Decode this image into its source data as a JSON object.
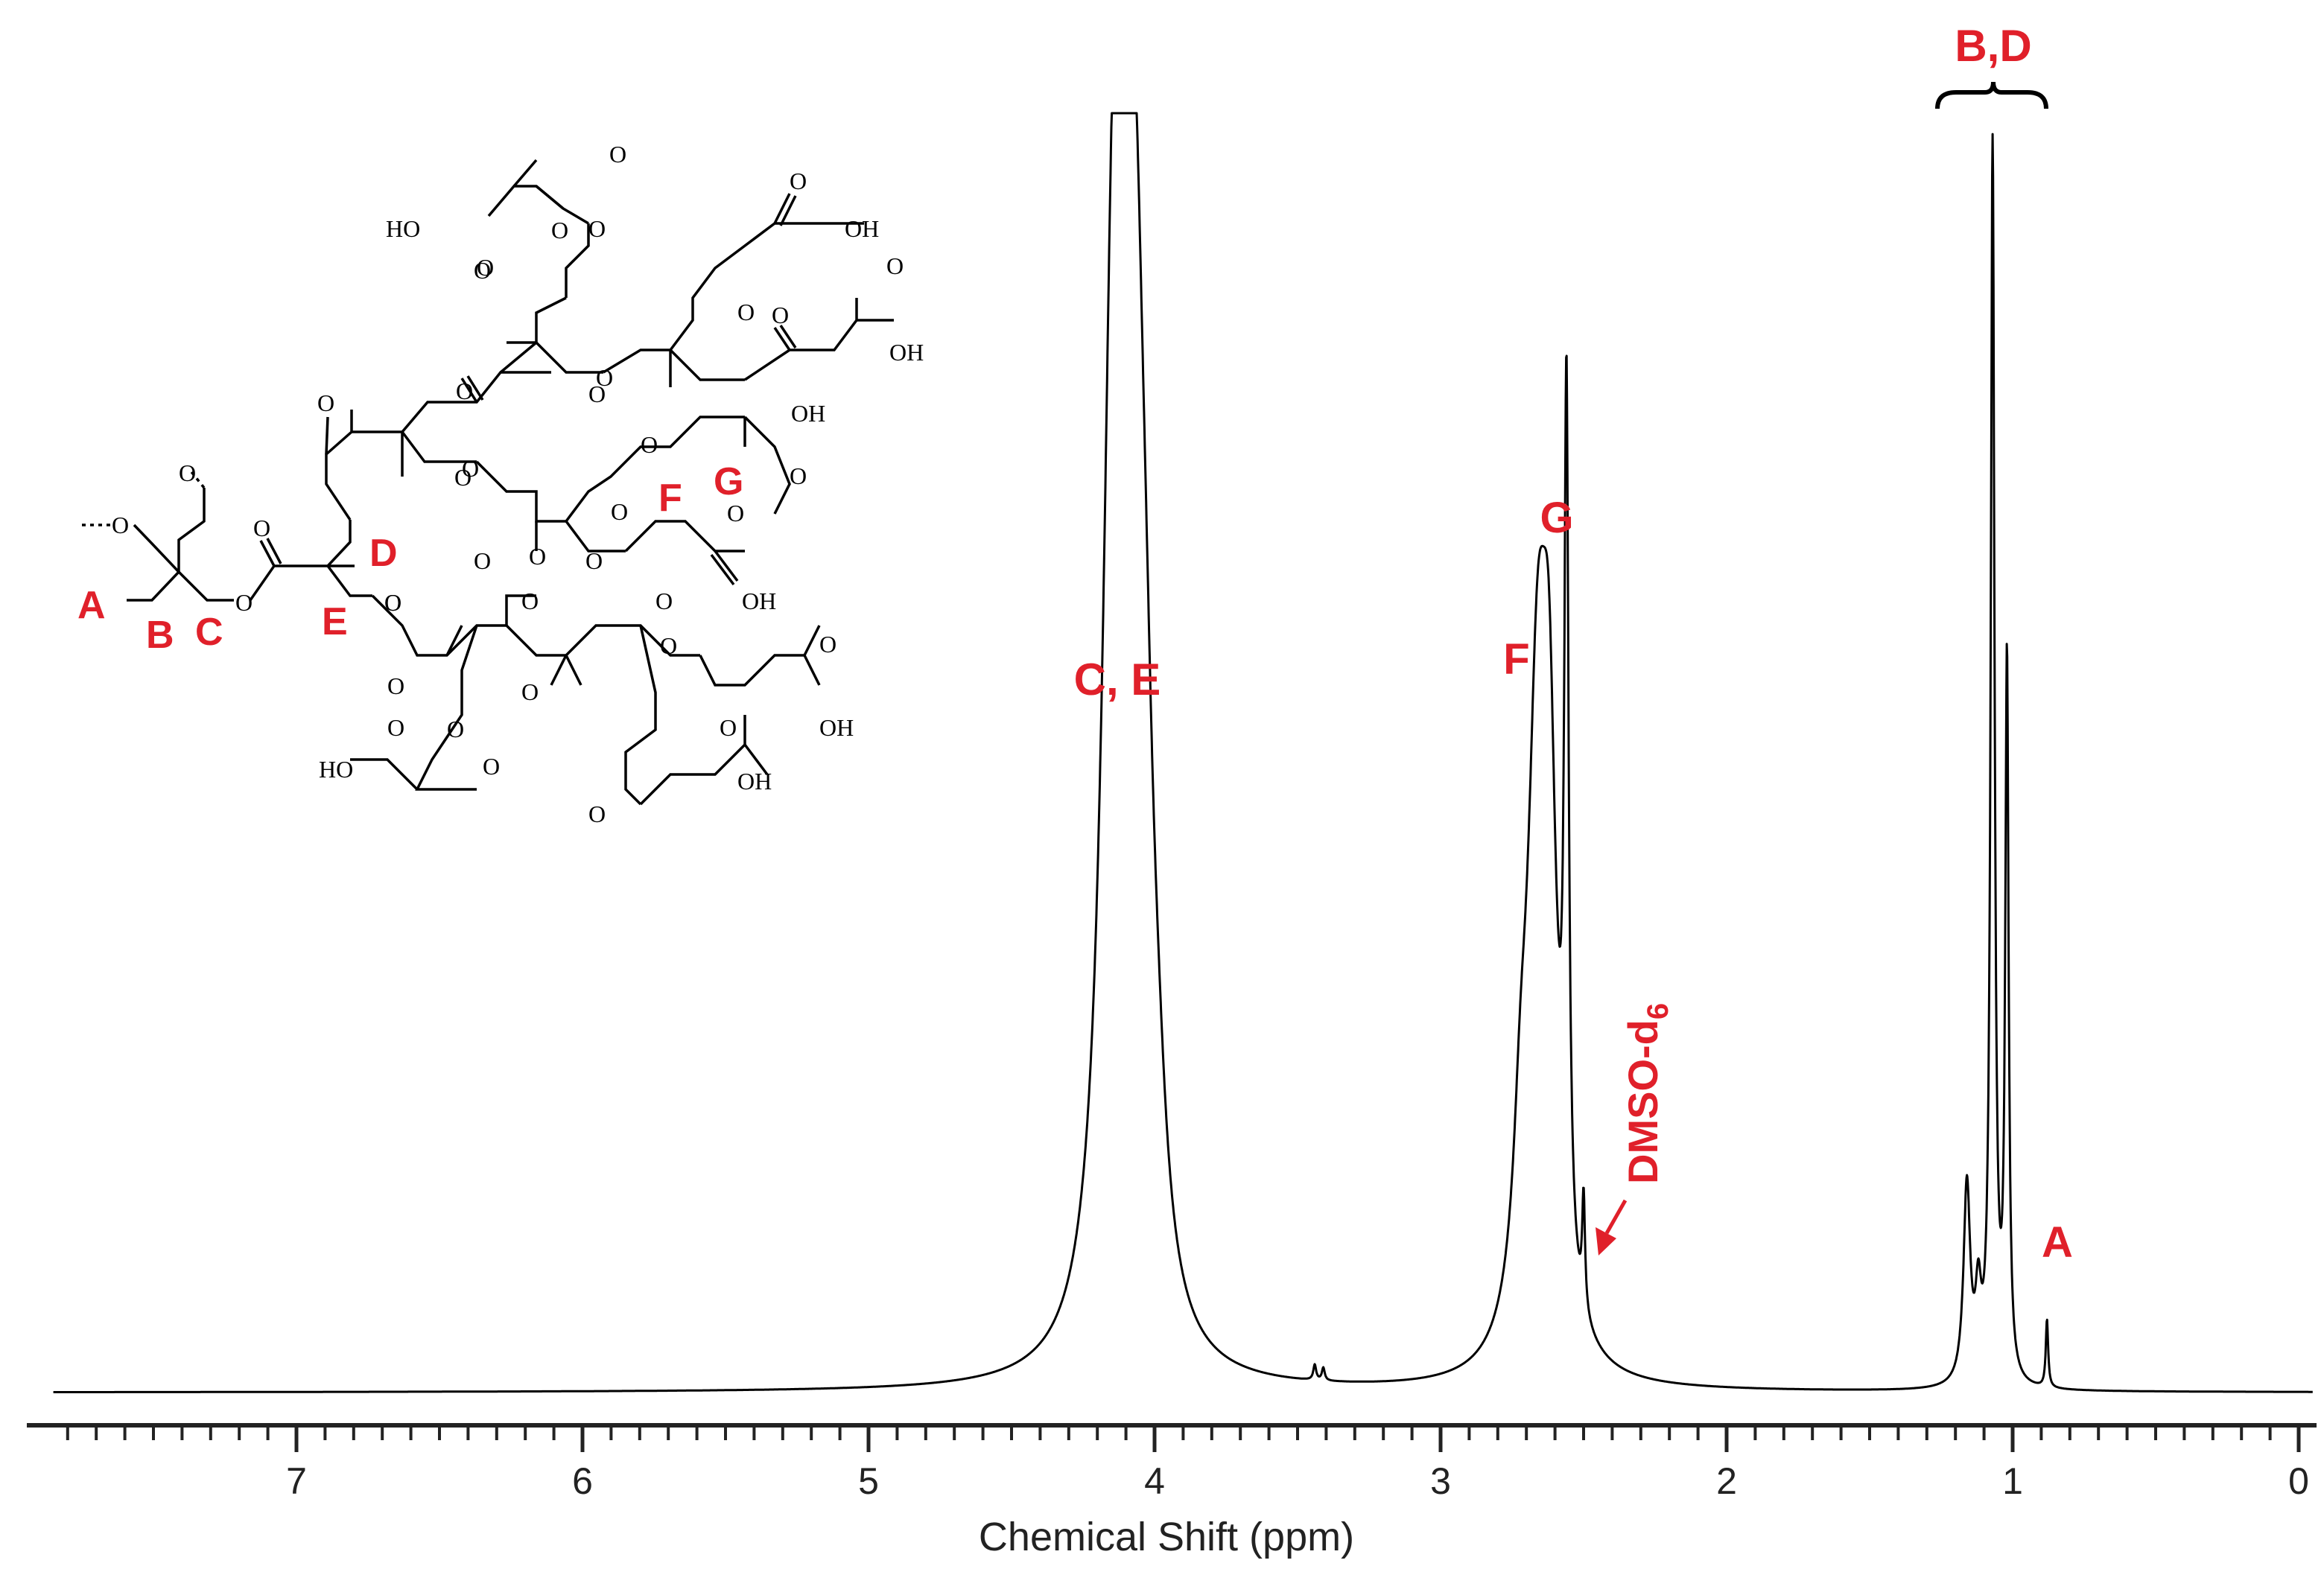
{
  "chart_data": {
    "type": "line",
    "xlabel": "Chemical Shift (ppm)",
    "xlim": [
      7.85,
      -0.05
    ],
    "x_reversed": true,
    "ticks": [
      "7",
      "6",
      "5",
      "4",
      "3",
      "2",
      "1",
      "0"
    ],
    "ylim": [
      0,
      1.0
    ],
    "grid": false,
    "series": [
      {
        "peaks": [
          {
            "shift": 4.15,
            "height": 0.5,
            "width": 0.045
          },
          {
            "shift": 4.12,
            "height": 0.48,
            "width": 0.04
          },
          {
            "shift": 4.09,
            "height": 0.42,
            "width": 0.04
          },
          {
            "shift": 4.06,
            "height": 0.33,
            "width": 0.035
          },
          {
            "shift": 4.03,
            "height": 0.2,
            "width": 0.035
          },
          {
            "shift": 3.99,
            "height": 0.08,
            "width": 0.04
          },
          {
            "shift": 3.44,
            "height": 0.012,
            "width": 0.006
          },
          {
            "shift": 3.41,
            "height": 0.01,
            "width": 0.006
          },
          {
            "shift": 2.66,
            "height": 0.5,
            "width": 0.045
          },
          {
            "shift": 2.62,
            "height": 0.32,
            "width": 0.03
          },
          {
            "shift": 2.72,
            "height": 0.1,
            "width": 0.03
          },
          {
            "shift": 2.56,
            "height": 0.66,
            "width": 0.009
          },
          {
            "shift": 2.5,
            "height": 0.088,
            "width": 0.006
          },
          {
            "shift": 1.16,
            "height": 0.155,
            "width": 0.014
          },
          {
            "shift": 1.12,
            "height": 0.06,
            "width": 0.012
          },
          {
            "shift": 1.07,
            "height": 0.965,
            "width": 0.008
          },
          {
            "shift": 1.02,
            "height": 0.56,
            "width": 0.007
          },
          {
            "shift": 0.88,
            "height": 0.053,
            "width": 0.005
          }
        ]
      }
    ],
    "annotations": [
      {
        "text": "C, E",
        "shift": 4.08
      },
      {
        "text": "F",
        "shift": 2.76
      },
      {
        "text": "G",
        "shift": 2.54
      },
      {
        "text": "DMSO-d",
        "subscript": "6",
        "shift": 2.42,
        "arrow_to": 2.5
      },
      {
        "text": "B,D",
        "shift": 1.07,
        "bracket": [
          1.26,
          0.88
        ]
      },
      {
        "text": "A",
        "shift": 0.88
      }
    ]
  },
  "structure": {
    "labels": [
      "A",
      "B",
      "C",
      "D",
      "E",
      "F",
      "G"
    ],
    "atom_labels": {
      "o": "O",
      "oh": "OH",
      "ho": "HO"
    }
  },
  "colors": {
    "annotation": "#e0202a",
    "trace": "#000000",
    "axis": "#222222"
  }
}
